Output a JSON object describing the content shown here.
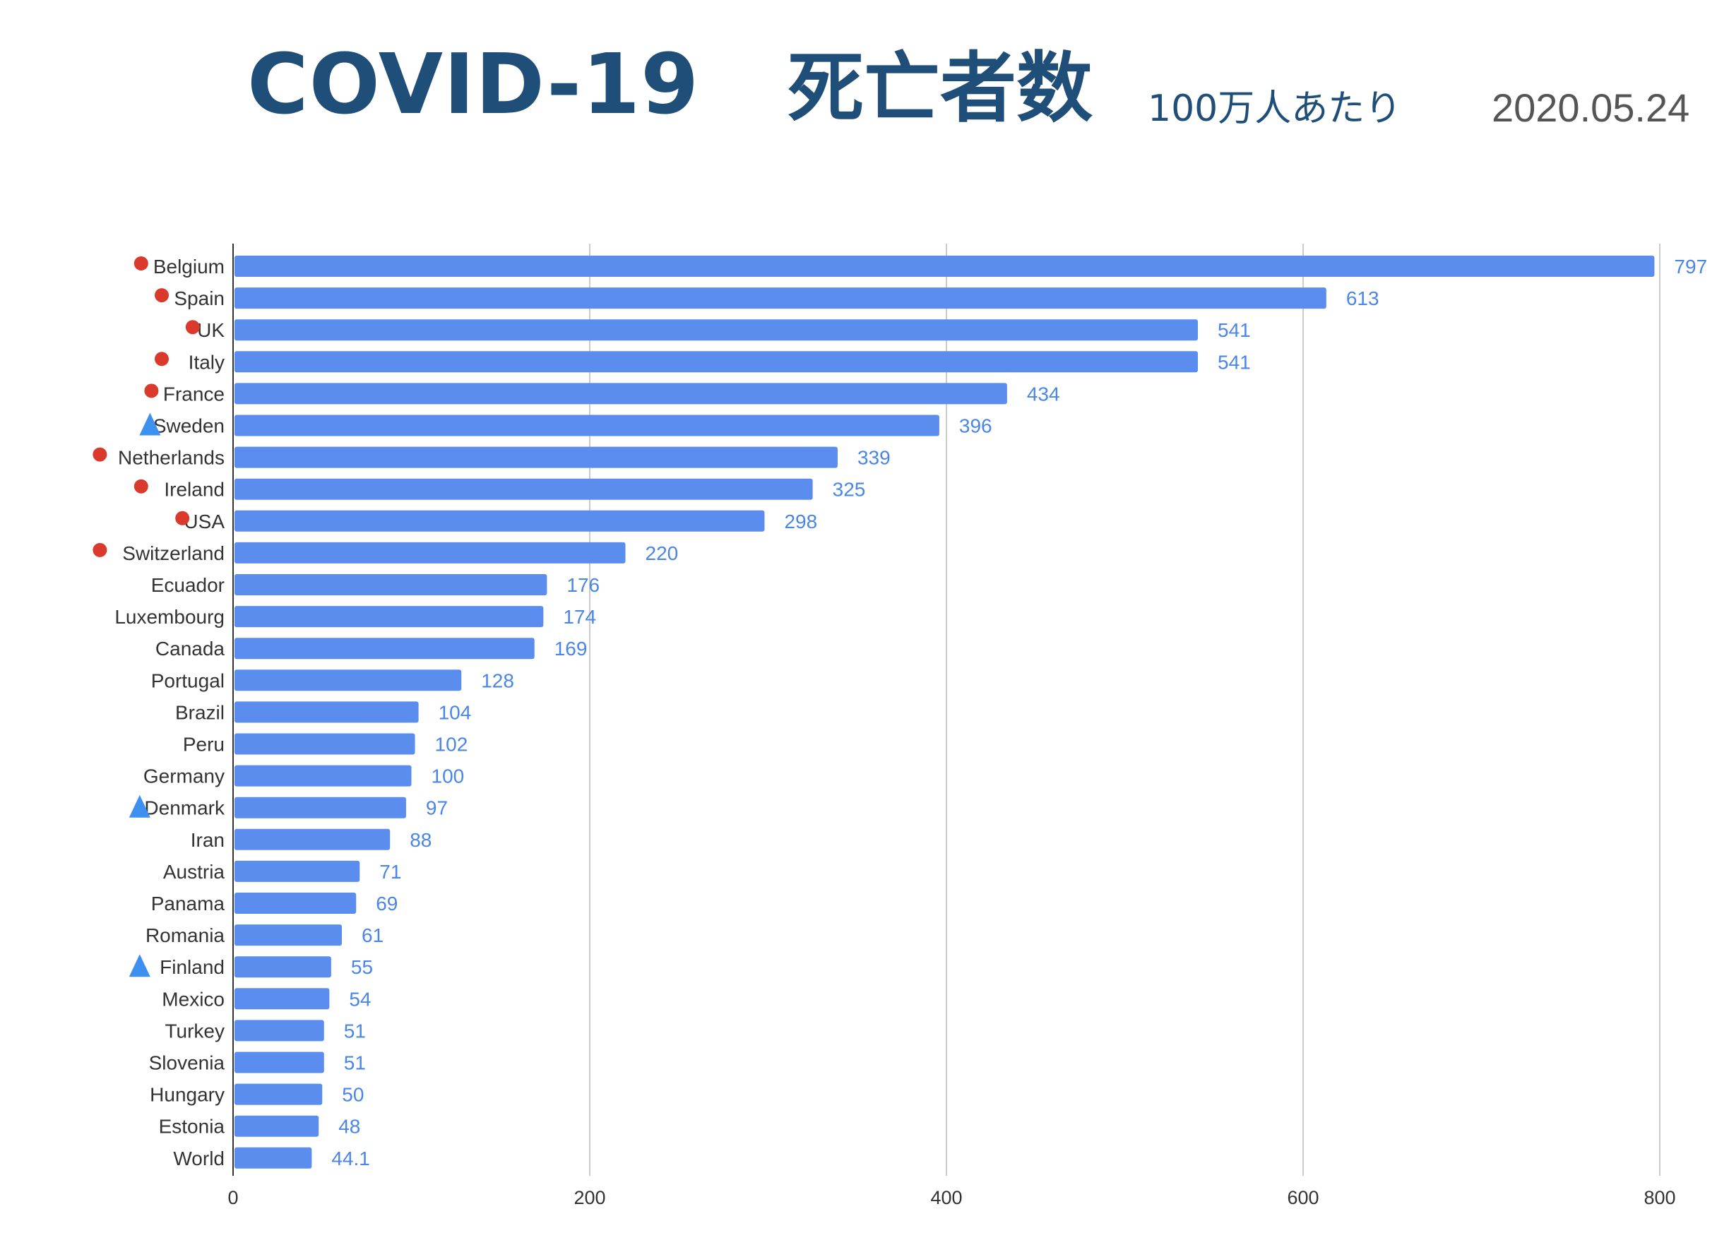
{
  "header": {
    "title": "COVID-19",
    "title_jp": "死亡者数",
    "subtitle": "100万人あたり",
    "date": "2020.05.24"
  },
  "colors": {
    "bar": "#5b8def",
    "value_label": "#4a86e8",
    "title": "#1f4e79",
    "marker_circle": "#d93a2b",
    "marker_triangle": "#3d8ff0",
    "grid": "#cccccc"
  },
  "chart_data": {
    "type": "bar",
    "orientation": "horizontal",
    "categories": [
      "Belgium",
      "Spain",
      "UK",
      "Italy",
      "France",
      "Sweden",
      "Netherlands",
      "Ireland",
      "USA",
      "Switzerland",
      "Ecuador",
      "Luxembourg",
      "Canada",
      "Portugal",
      "Brazil",
      "Peru",
      "Germany",
      "Denmark",
      "Iran",
      "Austria",
      "Panama",
      "Romania",
      "Finland",
      "Mexico",
      "Turkey",
      "Slovenia",
      "Hungary",
      "Estonia",
      "World"
    ],
    "values": [
      797,
      613,
      541,
      541,
      434,
      396,
      339,
      325,
      298,
      220,
      176,
      174,
      169,
      128,
      104,
      102,
      100,
      97,
      88,
      71,
      69,
      61,
      55,
      54,
      51,
      51,
      50,
      48,
      44.1
    ],
    "value_labels": [
      "797",
      "613",
      "541",
      "541",
      "434",
      "396",
      "339",
      "325",
      "298",
      "220",
      "176",
      "174",
      "169",
      "128",
      "104",
      "102",
      "100",
      "97",
      "88",
      "71",
      "69",
      "61",
      "55",
      "54",
      "51",
      "51",
      "50",
      "48",
      "44.1"
    ],
    "markers": [
      "circle",
      "circle",
      "circle",
      "circle",
      "circle",
      "triangle",
      "circle",
      "circle",
      "circle",
      "circle",
      "",
      "",
      "",
      "",
      "",
      "",
      "",
      "triangle",
      "",
      "",
      "",
      "",
      "triangle",
      "",
      "",
      "",
      "",
      "",
      ""
    ],
    "xlim": [
      0,
      800
    ],
    "xticks": [
      0,
      200,
      400,
      600,
      800
    ],
    "xtick_labels": [
      "0",
      "200",
      "400",
      "600",
      "800"
    ],
    "grid": true,
    "legend": "none"
  }
}
